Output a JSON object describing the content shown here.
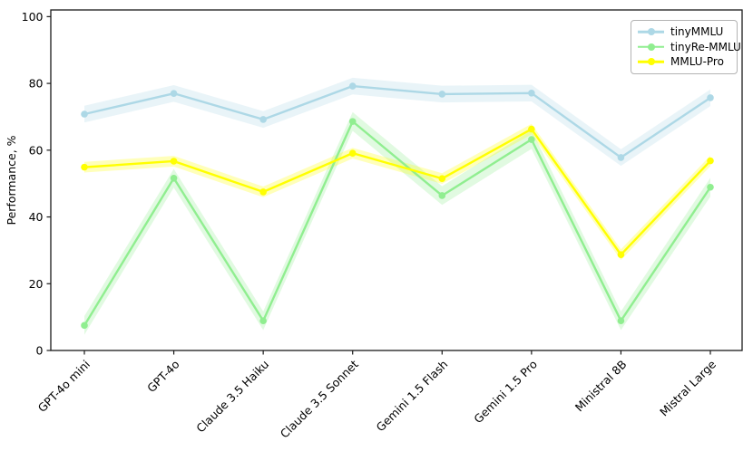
{
  "chart_data": {
    "type": "line",
    "title": "",
    "xlabel": "",
    "ylabel": "Performance, %",
    "categories": [
      "GPT-4o mini",
      "GPT-4o",
      "Claude 3.5 Haiku",
      "Claude 3.5 Sonnet",
      "Gemini 1.5 Flash",
      "Gemini 1.5 Pro",
      "Ministral 8B",
      "Mistral Large"
    ],
    "series": [
      {
        "name": "tinyMMLU",
        "color": "#ADD8E6",
        "values": [
          70.8,
          77.0,
          69.2,
          79.2,
          76.8,
          77.1,
          57.8,
          75.7
        ],
        "band_halfwidth": 2.5
      },
      {
        "name": "tinyRe-MMLU",
        "color": "#90EE90",
        "values": [
          7.5,
          51.6,
          8.9,
          68.6,
          46.4,
          63.2,
          8.9,
          48.9
        ],
        "band_halfwidth": 2.8
      },
      {
        "name": "MMLU-Pro",
        "color": "#FFFF00",
        "values": [
          54.9,
          56.7,
          47.5,
          59.1,
          51.5,
          66.3,
          28.7,
          56.8
        ],
        "band_halfwidth": 1.6
      }
    ],
    "yticks": [
      0,
      20,
      40,
      60,
      80,
      100
    ],
    "ylim": [
      0,
      102
    ],
    "grid": false,
    "legend_position": "upper right",
    "band_opacity": 0.27,
    "axis_color": "#1a1a1a"
  }
}
